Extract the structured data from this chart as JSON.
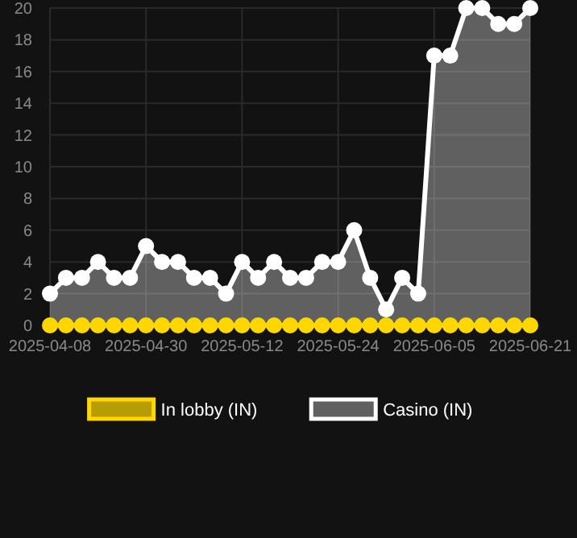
{
  "chart_data": {
    "type": "area",
    "categories": [
      "2025-04-08",
      null,
      null,
      null,
      null,
      null,
      "2025-04-30",
      null,
      null,
      null,
      null,
      null,
      "2025-05-12",
      null,
      null,
      null,
      null,
      null,
      "2025-05-24",
      null,
      null,
      null,
      null,
      null,
      "2025-06-05",
      null,
      null,
      null,
      null,
      null,
      "2025-06-21"
    ],
    "series": [
      {
        "name": "In lobby (IN)",
        "color": "#ffd700",
        "type": "line",
        "values": [
          0,
          0,
          0,
          0,
          0,
          0,
          0,
          0,
          0,
          0,
          0,
          0,
          0,
          0,
          0,
          0,
          0,
          0,
          0,
          0,
          0,
          0,
          0,
          0,
          0,
          0,
          0,
          0,
          0,
          0,
          0
        ]
      },
      {
        "name": "Casino (IN)",
        "color": "#ffffff",
        "values": [
          2,
          3,
          3,
          4,
          3,
          3,
          5,
          4,
          4,
          3,
          3,
          2,
          4,
          3,
          4,
          3,
          3,
          4,
          4,
          6,
          3,
          1,
          3,
          2,
          17,
          17,
          20,
          20,
          19,
          19,
          20
        ]
      }
    ],
    "ylim": [
      0,
      20
    ],
    "yticks": [
      0,
      2,
      4,
      6,
      8,
      10,
      12,
      14,
      16,
      18,
      20
    ],
    "grid": true,
    "legend": "bottom",
    "marker": "circle",
    "line_style": "solid"
  }
}
